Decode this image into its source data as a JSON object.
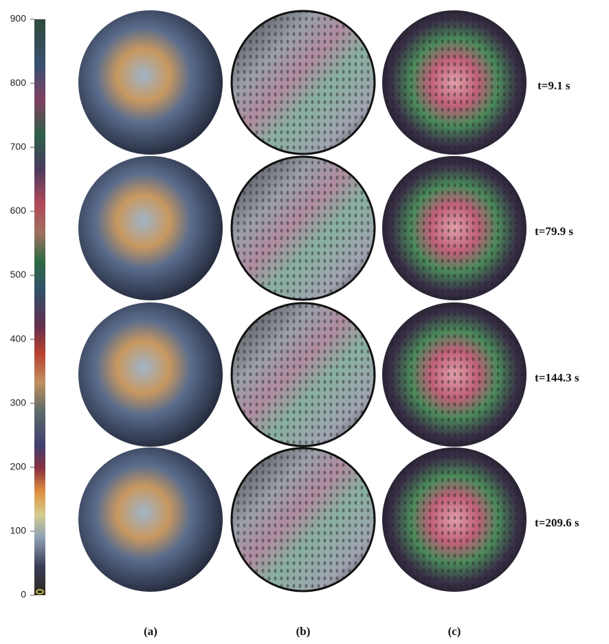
{
  "colorbar": {
    "ticks": [
      0,
      100,
      200,
      300,
      400,
      500,
      600,
      700,
      800,
      900
    ]
  },
  "rows": [
    {
      "time": "t=9.1 s"
    },
    {
      "time": "t=79.9 s"
    },
    {
      "time": "t=144.3 s"
    },
    {
      "time": "t=209.6 s"
    }
  ],
  "panels": [
    "(a)",
    "(b)",
    "(c)"
  ]
}
